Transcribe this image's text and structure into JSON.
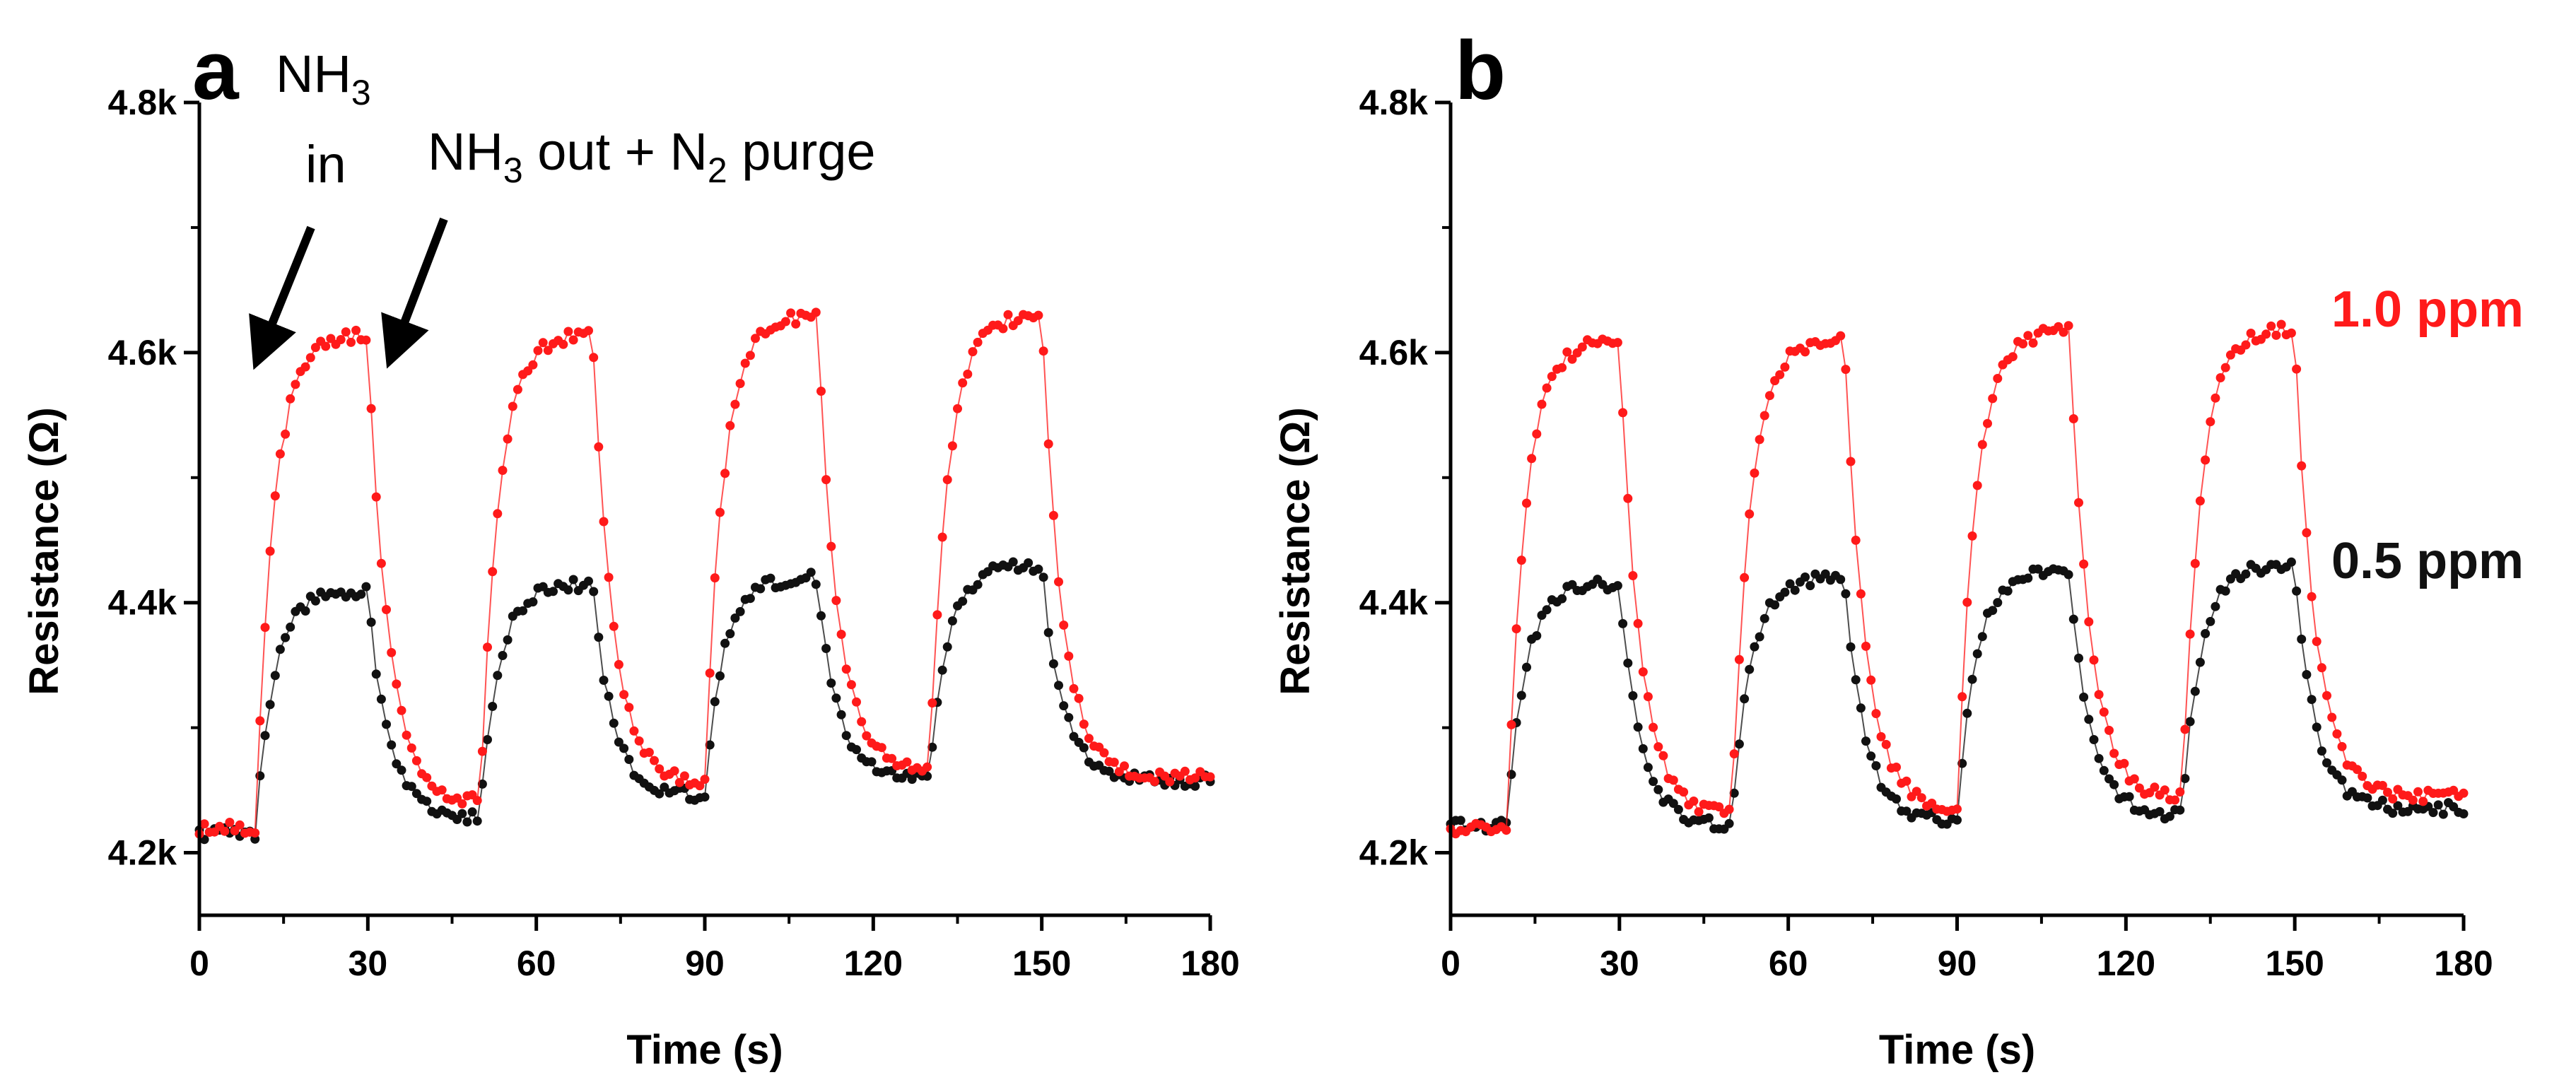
{
  "colors": {
    "red": "#ff1a1a",
    "black": "#111111",
    "axis": "#000000"
  },
  "chart_data": [
    {
      "type": "scatter",
      "panel_label": "a",
      "xlabel": "Time (s)",
      "ylabel": "Resistance (Ω)",
      "xlim": [
        0,
        180
      ],
      "ylim": [
        4150,
        4800
      ],
      "xticks": [
        0,
        30,
        60,
        90,
        120,
        150,
        180
      ],
      "xtick_labels": [
        "0",
        "30",
        "60",
        "90",
        "120",
        "150",
        "180"
      ],
      "yticks": [
        4200,
        4400,
        4600,
        4800
      ],
      "ytick_labels": [
        "4.2k",
        "4.4k",
        "4.6k",
        "4.8k"
      ],
      "annotations": [
        {
          "name": "nh3-in",
          "text_main": "NH",
          "text_sub": "3",
          "line2": "in"
        },
        {
          "name": "nh3-out",
          "text_main": "NH",
          "text_sub": "3",
          "text_mid": " out + N",
          "text_sub2": "2",
          "text_end": " purge"
        }
      ],
      "series": [
        {
          "name": "1.0 ppm",
          "color": "#ff1a1a",
          "baseline": 4220,
          "cycles": [
            {
              "on": 10,
              "off": 30,
              "peak": 4615,
              "rec_base": 4240
            },
            {
              "on": 50,
              "off": 70,
              "peak": 4615,
              "rec_base": 4255
            },
            {
              "on": 90,
              "off": 110,
              "peak": 4630,
              "rec_base": 4265
            },
            {
              "on": 130,
              "off": 150,
              "peak": 4630,
              "rec_base": 4260
            }
          ]
        },
        {
          "name": "0.5 ppm",
          "color": "#111111",
          "baseline": 4215,
          "cycles": [
            {
              "on": 10,
              "off": 30,
              "peak": 4410,
              "rec_base": 4228
            },
            {
              "on": 50,
              "off": 70,
              "peak": 4415,
              "rec_base": 4245
            },
            {
              "on": 90,
              "off": 110,
              "peak": 4420,
              "rec_base": 4258
            },
            {
              "on": 130,
              "off": 150,
              "peak": 4430,
              "rec_base": 4258
            }
          ]
        }
      ]
    },
    {
      "type": "scatter",
      "panel_label": "b",
      "xlabel": "Time (s)",
      "ylabel": "Resistance (Ω)",
      "xlim": [
        0,
        180
      ],
      "ylim": [
        4150,
        4800
      ],
      "xticks": [
        0,
        30,
        60,
        90,
        120,
        150,
        180
      ],
      "xtick_labels": [
        "0",
        "30",
        "60",
        "90",
        "120",
        "150",
        "180"
      ],
      "yticks": [
        4200,
        4400,
        4600,
        4800
      ],
      "ytick_labels": [
        "4.2k",
        "4.4k",
        "4.6k",
        "4.8k"
      ],
      "legend": [
        {
          "text": "1.0 ppm",
          "color": "#ff1a1a"
        },
        {
          "text": "0.5 ppm",
          "color": "#111111"
        }
      ],
      "series": [
        {
          "name": "1.0 ppm",
          "color": "#ff1a1a",
          "baseline": 4220,
          "cycles": [
            {
              "on": 10,
              "off": 30,
              "peak": 4610,
              "rec_base": 4230
            },
            {
              "on": 50,
              "off": 70,
              "peak": 4612,
              "rec_base": 4235
            },
            {
              "on": 90,
              "off": 110,
              "peak": 4618,
              "rec_base": 4242
            },
            {
              "on": 130,
              "off": 150,
              "peak": 4620,
              "rec_base": 4245
            }
          ]
        },
        {
          "name": "0.5 ppm",
          "color": "#111111",
          "baseline": 4222,
          "cycles": [
            {
              "on": 10,
              "off": 30,
              "peak": 4415,
              "rec_base": 4222
            },
            {
              "on": 50,
              "off": 70,
              "peak": 4420,
              "rec_base": 4225
            },
            {
              "on": 90,
              "off": 110,
              "peak": 4425,
              "rec_base": 4230
            },
            {
              "on": 130,
              "off": 150,
              "peak": 4430,
              "rec_base": 4235
            }
          ]
        }
      ]
    }
  ]
}
